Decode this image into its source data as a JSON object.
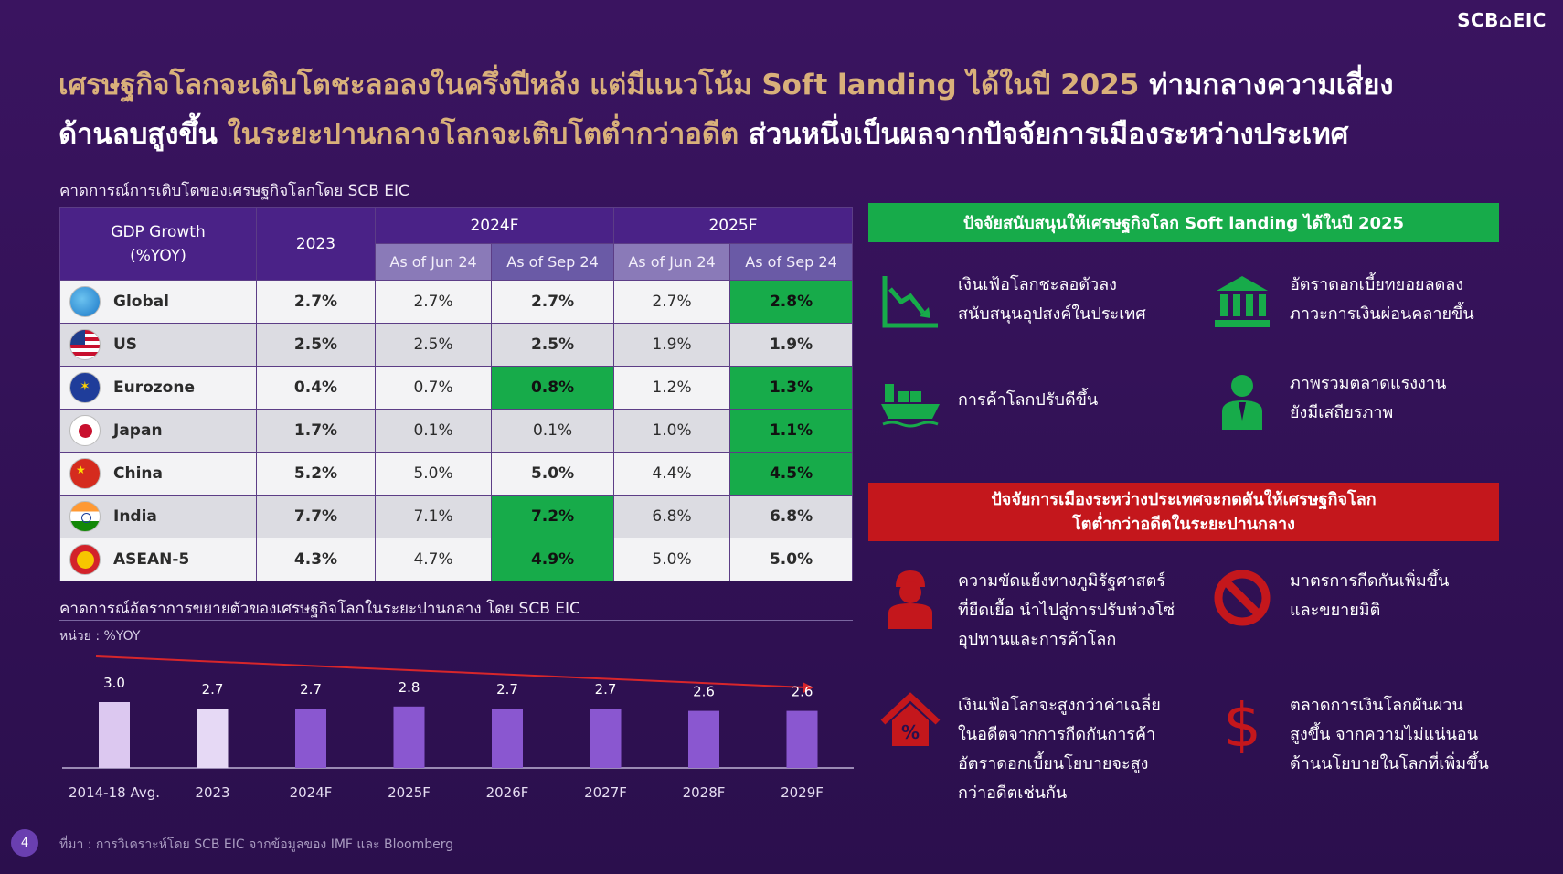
{
  "logo": "SCB⌂EIC",
  "headline": {
    "line1_gold": "เศรษฐกิจโลกจะเติบโตชะลอลงในครึ่งปีหลัง แต่มีแนวโน้ม Soft landing ได้ในปี 2025",
    "line1_white": " ท่ามกลางความเสี่ยง",
    "line2_white_a": "ด้านลบสูงขึ้น",
    "line2_gold": " ในระยะปานกลางโลกจะเติบโตต่ำกว่าอดีต",
    "line2_white_b": " ส่วนหนึ่งเป็นผลจากปัจจัยการเมืองระหว่างประเทศ"
  },
  "table_title": "คาดการณ์การเติบโตของเศรษฐกิจโลกโดย SCB EIC",
  "table": {
    "header_gdp": "GDP Growth",
    "header_gdp_unit": "(%YOY)",
    "header_2023": "2023",
    "header_2024": "2024F",
    "header_2025": "2025F",
    "sub_jun": "As of Jun 24",
    "sub_sep": "As of Sep 24",
    "rows": [
      {
        "country": "Global",
        "y2023": "2.7%",
        "y24_jun": "2.7%",
        "y24_sep": "2.7%",
        "y25_jun": "2.7%",
        "y25_sep": "2.8%"
      },
      {
        "country": "US",
        "y2023": "2.5%",
        "y24_jun": "2.5%",
        "y24_sep": "2.5%",
        "y25_jun": "1.9%",
        "y25_sep": "1.9%"
      },
      {
        "country": "Eurozone",
        "y2023": "0.4%",
        "y24_jun": "0.7%",
        "y24_sep": "0.8%",
        "y25_jun": "1.2%",
        "y25_sep": "1.3%"
      },
      {
        "country": "Japan",
        "y2023": "1.7%",
        "y24_jun": "0.1%",
        "y24_sep": "0.1%",
        "y25_jun": "1.0%",
        "y25_sep": "1.1%"
      },
      {
        "country": "China",
        "y2023": "5.2%",
        "y24_jun": "5.0%",
        "y24_sep": "5.0%",
        "y25_jun": "4.4%",
        "y25_sep": "4.5%"
      },
      {
        "country": "India",
        "y2023": "7.7%",
        "y24_jun": "7.1%",
        "y24_sep": "7.2%",
        "y25_jun": "6.8%",
        "y25_sep": "6.8%"
      },
      {
        "country": "ASEAN-5",
        "y2023": "4.3%",
        "y24_jun": "4.7%",
        "y24_sep": "4.9%",
        "y25_jun": "5.0%",
        "y25_sep": "5.0%"
      }
    ]
  },
  "chart_title": "คาดการณ์อัตราการขยายตัวของเศรษฐกิจโลกในระยะปานกลาง โดย SCB EIC",
  "chart_unit": "หน่วย : %YOY",
  "chart_data": {
    "type": "bar",
    "categories": [
      "2014-18 Avg.",
      "2023",
      "2024F",
      "2025F",
      "2026F",
      "2027F",
      "2028F",
      "2029F"
    ],
    "values": [
      3.0,
      2.7,
      2.7,
      2.8,
      2.7,
      2.7,
      2.6,
      2.6
    ],
    "value_labels": [
      "3.0",
      "2.7",
      "2.7",
      "2.8",
      "2.7",
      "2.7",
      "2.6",
      "2.6"
    ],
    "colors": {
      "first": "#dcc8f0",
      "second": "#e6d9f5",
      "rest": "#8a57d0"
    },
    "trend_arrow_color": "#d8262b",
    "ylim": [
      0,
      3.0
    ]
  },
  "green_panel": {
    "title": "ปัจจัยสนับสนุนให้เศรษฐกิจโลก Soft landing ได้ในปี 2025",
    "items": [
      {
        "icon": "declining-chart-icon",
        "text": "เงินเฟ้อโลกชะลอตัวลง\nสนับสนุนอุปสงค์ในประเทศ"
      },
      {
        "icon": "bank-icon",
        "text": "อัตราดอกเบี้ยทยอยลดลง\nภาวะการเงินผ่อนคลายขึ้น"
      },
      {
        "icon": "cargo-ship-icon",
        "text": "การค้าโลกปรับดีขึ้น"
      },
      {
        "icon": "worker-icon",
        "text": "ภาพรวมตลาดแรงงาน\nยังมีเสถียรภาพ"
      }
    ]
  },
  "red_panel": {
    "title_line1": "ปัจจัยการเมืองระหว่างประเทศจะกดดันให้เศรษฐกิจโลก",
    "title_line2": "โตต่ำกว่าอดีตในระยะปานกลาง",
    "items": [
      {
        "icon": "soldier-icon",
        "text": "ความขัดแย้งทางภูมิรัฐศาสตร์\nที่ยืดเยื้อ นำไปสู่การปรับห่วงโซ่\nอุปทานและการค้าโลก"
      },
      {
        "icon": "prohibited-icon",
        "text": "มาตรการกีดกันเพิ่มขึ้น\nและขยายมิติ"
      },
      {
        "icon": "house-percent-icon",
        "text": "เงินเฟ้อโลกจะสูงกว่าค่าเฉลี่ย\nในอดีตจากการกีดกันการค้า\nอัตราดอกเบี้ยนโยบายจะสูง\nกว่าอดีตเช่นกัน"
      },
      {
        "icon": "dollar-icon",
        "text": "ตลาดการเงินโลกผันผวน\nสูงขึ้น จากความไม่แน่นอน\nด้านนโยบายในโลกที่เพิ่มขึ้น"
      }
    ]
  },
  "page_number": "4",
  "source": "ที่มา : การวิเคราะห์โดย SCB EIC จากข้อมูลของ IMF และ Bloomberg"
}
